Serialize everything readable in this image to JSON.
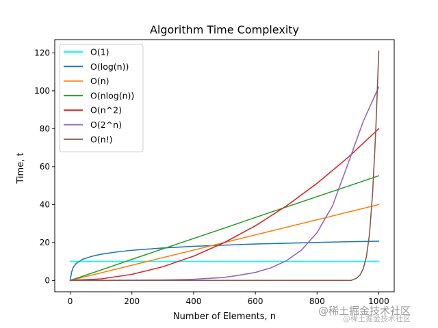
{
  "chart_data": {
    "type": "line",
    "title": "Algorithm Time Complexity",
    "xlabel": "Number of Elements, n",
    "ylabel": "Time, t",
    "xlim": [
      -50,
      1050
    ],
    "ylim": [
      -6,
      127
    ],
    "xticks": [
      0,
      200,
      400,
      600,
      800,
      1000
    ],
    "yticks": [
      0,
      20,
      40,
      60,
      80,
      100,
      120
    ],
    "grid": false,
    "legend_position": "top-left",
    "series": [
      {
        "name": "O(1)",
        "color": "#00ffff",
        "points": [
          [
            0,
            10
          ],
          [
            1000,
            10
          ]
        ]
      },
      {
        "name": "O(log(n))",
        "color": "#1f77b4",
        "points": [
          [
            0,
            0
          ],
          [
            2,
            2.0
          ],
          [
            5,
            4.6
          ],
          [
            10,
            6.9
          ],
          [
            20,
            9.0
          ],
          [
            40,
            11.1
          ],
          [
            70,
            12.7
          ],
          [
            100,
            13.8
          ],
          [
            150,
            15.0
          ],
          [
            200,
            15.9
          ],
          [
            300,
            17.1
          ],
          [
            400,
            18.0
          ],
          [
            500,
            18.6
          ],
          [
            600,
            19.2
          ],
          [
            700,
            19.6
          ],
          [
            800,
            20.0
          ],
          [
            900,
            20.4
          ],
          [
            1000,
            20.7
          ]
        ]
      },
      {
        "name": "O(n)",
        "color": "#ff7f0e",
        "points": [
          [
            0,
            0
          ],
          [
            1000,
            40
          ]
        ]
      },
      {
        "name": "O(nlog(n))",
        "color": "#2ca02c",
        "points": [
          [
            0,
            0
          ],
          [
            100,
            5.5
          ],
          [
            200,
            11.1
          ],
          [
            300,
            16.6
          ],
          [
            400,
            22.1
          ],
          [
            500,
            27.6
          ],
          [
            600,
            33.2
          ],
          [
            700,
            38.7
          ],
          [
            800,
            44.2
          ],
          [
            900,
            49.7
          ],
          [
            1000,
            55.2
          ]
        ]
      },
      {
        "name": "O(n^2)",
        "color": "#d62728",
        "points": [
          [
            0,
            0
          ],
          [
            100,
            0.8
          ],
          [
            200,
            3.2
          ],
          [
            300,
            7.2
          ],
          [
            400,
            12.8
          ],
          [
            500,
            20
          ],
          [
            600,
            28.8
          ],
          [
            700,
            39.2
          ],
          [
            800,
            51.2
          ],
          [
            900,
            64.8
          ],
          [
            1000,
            80
          ]
        ]
      },
      {
        "name": "O(2^n)",
        "color": "#9467bd",
        "points": [
          [
            0,
            0
          ],
          [
            300,
            0.2
          ],
          [
            400,
            0.6
          ],
          [
            500,
            1.6
          ],
          [
            550,
            2.8
          ],
          [
            600,
            4.2
          ],
          [
            650,
            6.6
          ],
          [
            700,
            10.3
          ],
          [
            750,
            16.1
          ],
          [
            800,
            25.2
          ],
          [
            850,
            39.3
          ],
          [
            900,
            61.4
          ],
          [
            950,
            84
          ],
          [
            1000,
            102
          ]
        ]
      },
      {
        "name": "O(n!)",
        "color": "#8c564b",
        "points": [
          [
            0,
            0
          ],
          [
            910,
            0
          ],
          [
            920,
            0.6
          ],
          [
            930,
            1.4
          ],
          [
            940,
            3.0
          ],
          [
            950,
            6.3
          ],
          [
            960,
            12.5
          ],
          [
            970,
            24.5
          ],
          [
            980,
            46
          ],
          [
            990,
            78
          ],
          [
            1000,
            121
          ]
        ]
      }
    ]
  },
  "watermark": {
    "main_text": "@稀土掘金技术社区",
    "sub_text": "@稀土掘金技术社区"
  }
}
